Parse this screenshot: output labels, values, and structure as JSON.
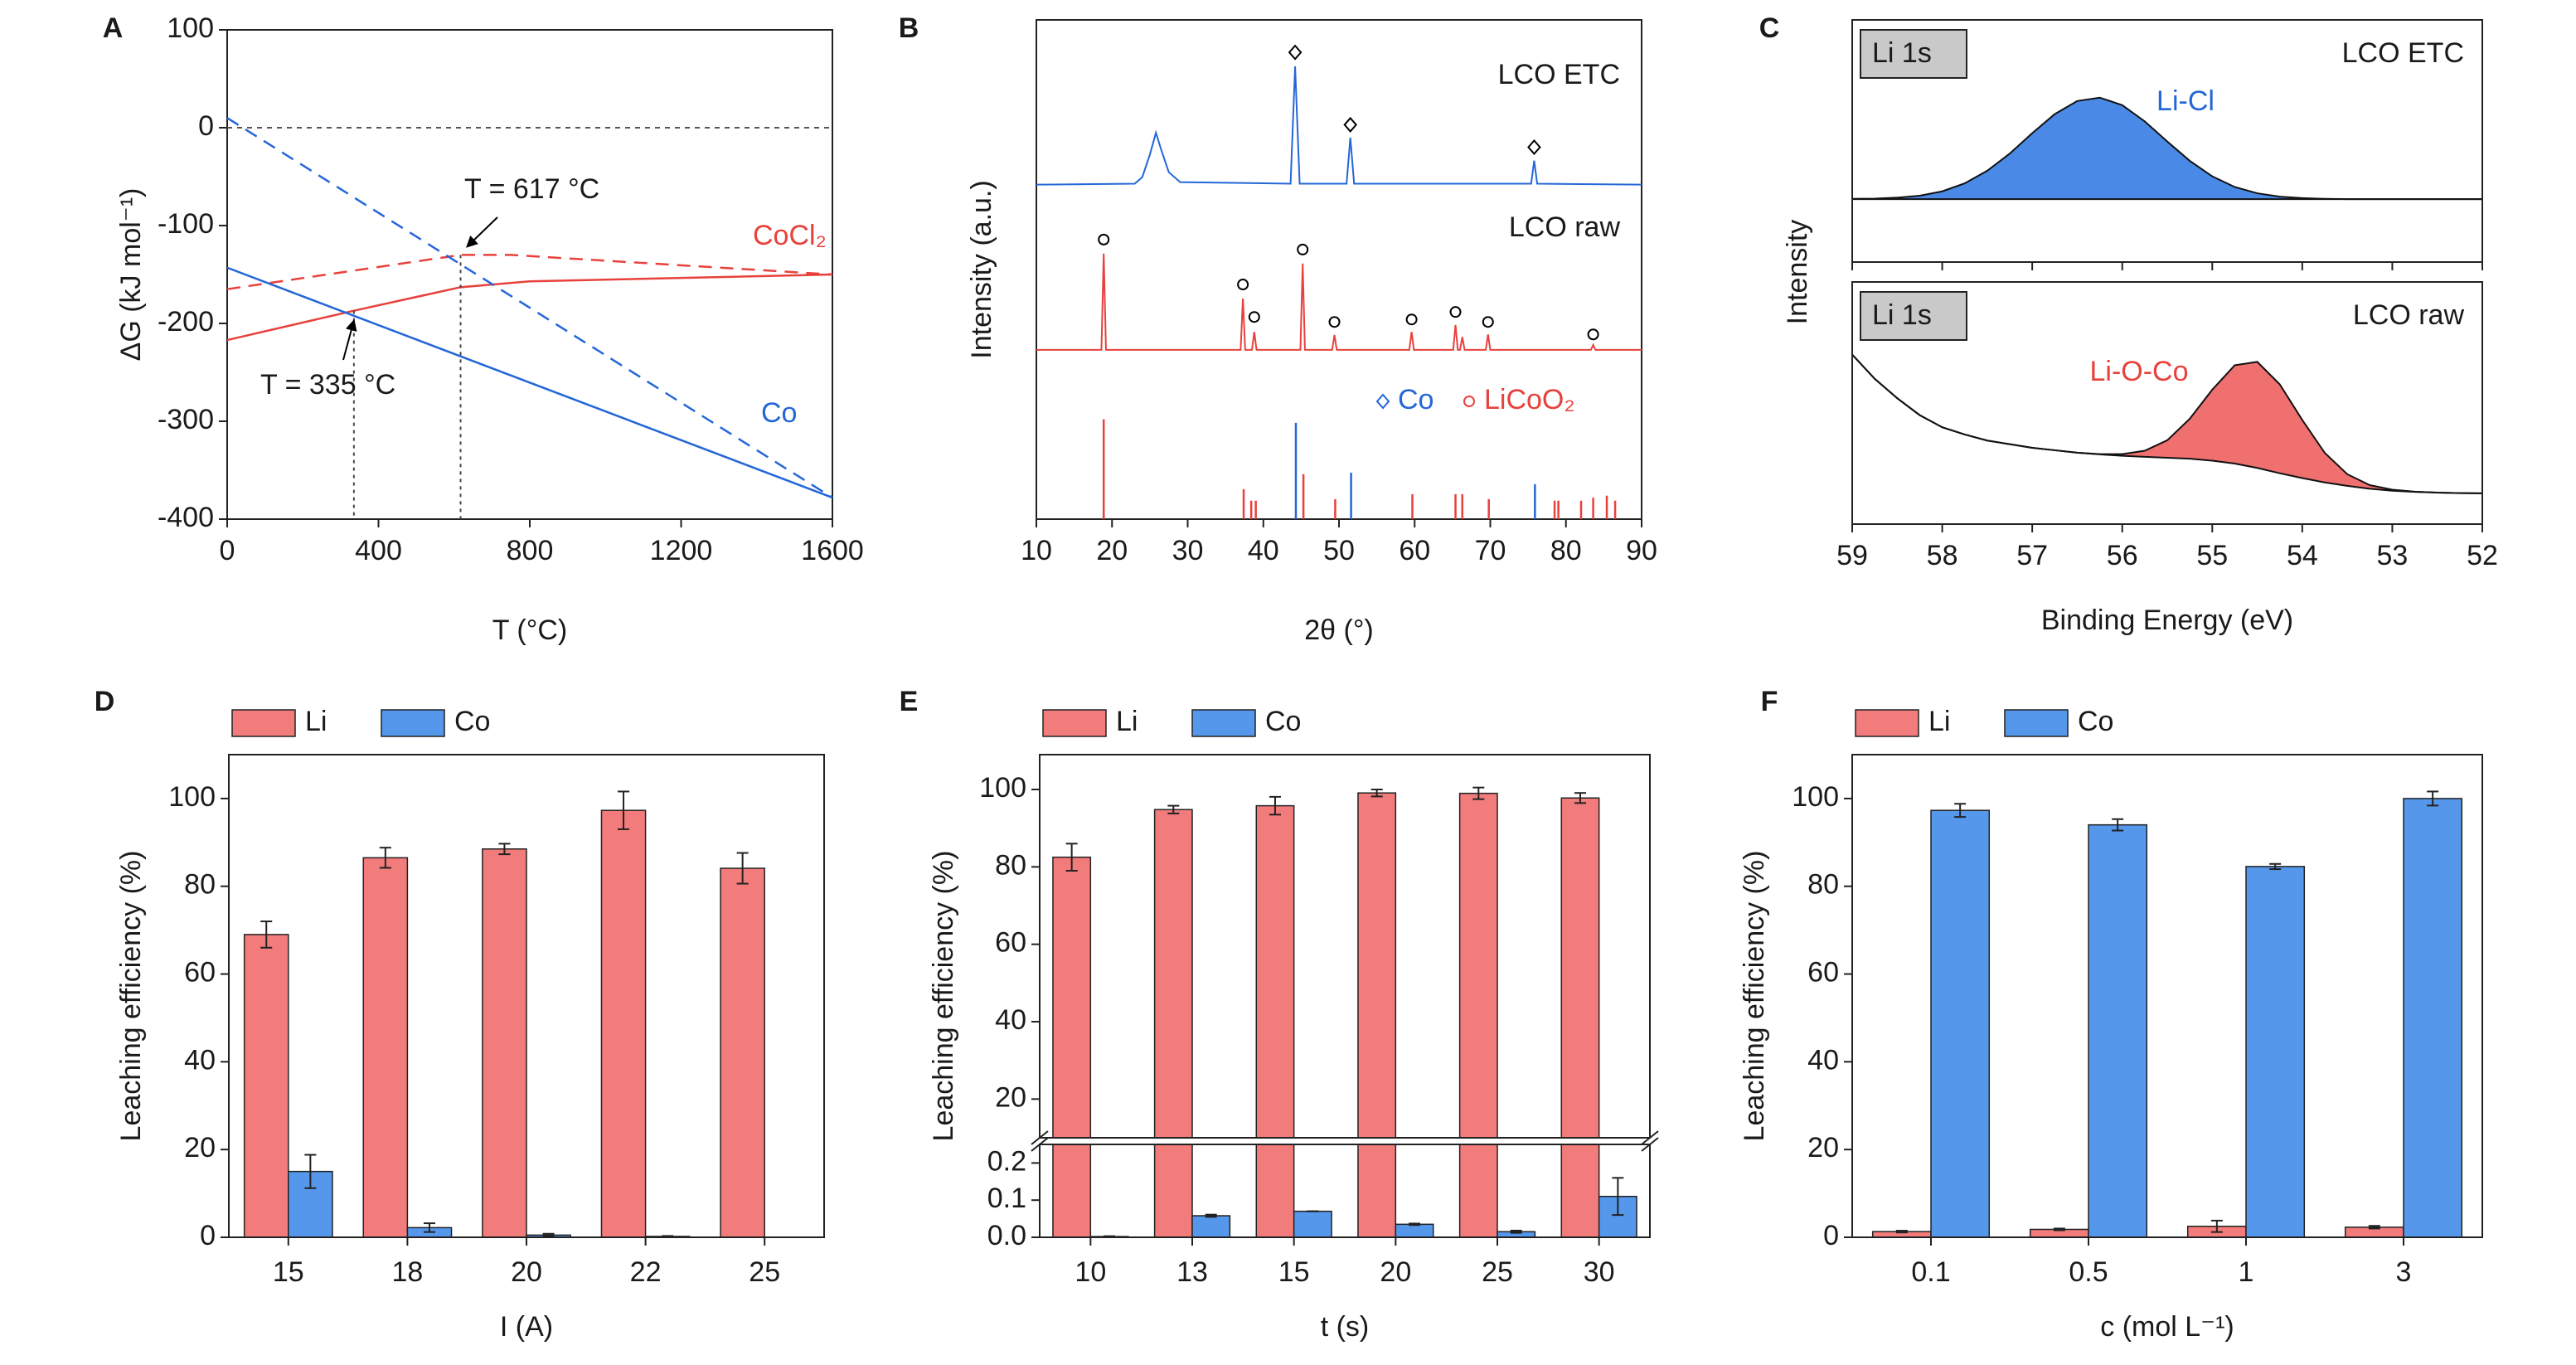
{
  "chart_data": [
    {
      "type": "line",
      "panel": "A",
      "xlabel": "T (°C)",
      "ylabel": "ΔG (kJ mol⁻¹)",
      "xlim": [
        0,
        1600
      ],
      "ylim": [
        -400,
        100
      ],
      "xticks": [
        0,
        400,
        800,
        1200,
        1600
      ],
      "yticks": [
        -400,
        -300,
        -200,
        -100,
        0,
        100
      ],
      "hline": 0,
      "series": [
        {
          "name": "CoCl₂",
          "color": "#e8413c",
          "dash": false,
          "x": [
            0,
            335,
            617,
            800,
            1600
          ],
          "values": [
            -217,
            -187,
            -163,
            -157,
            -150
          ]
        },
        {
          "color": "#e8413c",
          "dash": true,
          "x": [
            0,
            617,
            750,
            1600
          ],
          "values": [
            -165,
            -130,
            -130,
            -150
          ]
        },
        {
          "name": "Co",
          "color": "#2467d8",
          "dash": false,
          "x": [
            0,
            1600
          ],
          "values": [
            -143,
            -378
          ]
        },
        {
          "color": "#2467d8",
          "dash": true,
          "x": [
            0,
            1600
          ],
          "values": [
            10,
            -378
          ]
        }
      ],
      "annotations": [
        {
          "text": "T = 617 °C",
          "x": 617,
          "y": -130
        },
        {
          "text": "T = 335 °C",
          "x": 335,
          "y": -187
        }
      ]
    },
    {
      "type": "xrd",
      "panel": "B",
      "xlabel": "2θ (°)",
      "ylabel": "Intensity (a.u.)",
      "xlim": [
        10,
        90
      ],
      "xticks": [
        10,
        20,
        30,
        40,
        50,
        60,
        70,
        80,
        90
      ],
      "ylim": [
        0,
        10
      ],
      "series": [
        {
          "name": "LCO ETC",
          "color": "#2467d8",
          "x": [
            10,
            23,
            24,
            25,
            25.8,
            26.5,
            27.5,
            29,
            43.6,
            44.2,
            44.8,
            51,
            51.5,
            52,
            75.4,
            75.8,
            76.2,
            90
          ],
          "values": [
            6.7,
            6.72,
            6.85,
            7.3,
            7.74,
            7.4,
            6.95,
            6.75,
            6.72,
            9.07,
            6.72,
            6.72,
            7.64,
            6.72,
            6.72,
            7.18,
            6.72,
            6.7
          ]
        },
        {
          "name": "LCO raw",
          "color": "#e8413c",
          "x": [
            10,
            18.6,
            18.9,
            19.2,
            37,
            37.3,
            37.6,
            38.5,
            38.8,
            39.1,
            44.9,
            45.2,
            45.5,
            49.1,
            49.4,
            49.7,
            59.3,
            59.6,
            59.9,
            65.1,
            65.4,
            65.7,
            66,
            66.3,
            66.6,
            69.4,
            69.7,
            70,
            83.3,
            83.6,
            83.9,
            90
          ],
          "values": [
            3.39,
            3.39,
            5.32,
            3.39,
            3.39,
            4.42,
            3.39,
            3.39,
            3.75,
            3.39,
            3.39,
            5.12,
            3.39,
            3.39,
            3.69,
            3.39,
            3.39,
            3.75,
            3.39,
            3.39,
            3.89,
            3.39,
            3.39,
            3.65,
            3.39,
            3.39,
            3.7,
            3.39,
            3.39,
            3.49,
            3.39,
            3.39
          ]
        }
      ],
      "references": [
        {
          "name": "Co",
          "color": "#2467d8",
          "marker": "diamond",
          "x": [
            44.3,
            51.6,
            75.9
          ],
          "values": [
            1.93,
            0.93,
            0.7
          ],
          "marker_x": [
            44.2,
            51.5,
            75.8
          ],
          "marker_y": [
            9.35,
            7.9,
            7.45
          ]
        },
        {
          "name": "LiCoO₂",
          "color": "#e8413c",
          "marker": "circle",
          "x": [
            18.9,
            37.4,
            38.4,
            39.0,
            45.3,
            49.5,
            59.7,
            65.4,
            66.3,
            69.8,
            78.5,
            79.0,
            82.0,
            83.6,
            85.4,
            86.5
          ],
          "values": [
            2.0,
            0.6,
            0.37,
            0.37,
            0.9,
            0.4,
            0.5,
            0.5,
            0.5,
            0.4,
            0.37,
            0.37,
            0.37,
            0.43,
            0.47,
            0.37
          ],
          "marker_x": [
            18.9,
            37.3,
            38.8,
            45.2,
            49.4,
            59.6,
            65.4,
            69.7,
            83.6
          ],
          "marker_y": [
            5.6,
            4.7,
            4.05,
            5.4,
            3.95,
            4.0,
            4.15,
            3.95,
            3.7
          ]
        }
      ]
    },
    {
      "type": "xps",
      "panel": "C",
      "xlabel": "Binding Energy (eV)",
      "ylabel": "Intensity",
      "xlim": [
        59,
        52
      ],
      "xticks": [
        59,
        58,
        57,
        56,
        55,
        54,
        53,
        52
      ],
      "ylim": [
        0,
        1
      ],
      "x": [
        59,
        58.75,
        58.5,
        58.25,
        58,
        57.75,
        57.5,
        57.25,
        57,
        56.75,
        56.5,
        56.25,
        56,
        55.75,
        55.5,
        55.25,
        55,
        54.75,
        54.5,
        54.25,
        54,
        53.75,
        53.5,
        53.25,
        53,
        52.75,
        52.5,
        52.25,
        52
      ],
      "panels": [
        {
          "tag": "Li 1s",
          "name": "LCO ETC",
          "peak": {
            "label": "Li-Cl",
            "color": "#4a8ae6",
            "values": [
              0.261,
              0.262,
              0.266,
              0.274,
              0.292,
              0.325,
              0.377,
              0.448,
              0.532,
              0.611,
              0.665,
              0.679,
              0.648,
              0.581,
              0.498,
              0.418,
              0.354,
              0.31,
              0.284,
              0.27,
              0.264,
              0.261,
              0.26,
              0.26,
              0.26,
              0.26,
              0.26,
              0.26,
              0.26
            ]
          },
          "background": [
            0.26,
            0.26,
            0.26,
            0.26,
            0.26,
            0.26,
            0.26,
            0.26,
            0.26,
            0.26,
            0.26,
            0.26,
            0.26,
            0.26,
            0.26,
            0.26,
            0.26,
            0.26,
            0.26,
            0.26,
            0.26,
            0.26,
            0.26,
            0.26,
            0.26,
            0.26,
            0.26,
            0.26,
            0.26
          ]
        },
        {
          "tag": "Li 1s",
          "name": "LCO raw",
          "peak": {
            "label": "Li-O-Co",
            "color": "#f07070",
            "values": [
              0.7,
              0.6,
              0.52,
              0.45,
              0.4,
              0.37,
              0.345,
              0.33,
              0.315,
              0.305,
              0.295,
              0.289,
              0.289,
              0.303,
              0.346,
              0.435,
              0.555,
              0.656,
              0.67,
              0.577,
              0.43,
              0.294,
              0.206,
              0.161,
              0.142,
              0.134,
              0.13,
              0.128,
              0.127
            ]
          },
          "background": [
            0.7,
            0.6,
            0.52,
            0.45,
            0.4,
            0.37,
            0.345,
            0.33,
            0.315,
            0.305,
            0.295,
            0.288,
            0.282,
            0.278,
            0.274,
            0.27,
            0.262,
            0.25,
            0.232,
            0.21,
            0.19,
            0.172,
            0.158,
            0.146,
            0.138,
            0.133,
            0.13,
            0.128,
            0.127
          ]
        }
      ]
    },
    {
      "type": "bar",
      "panel": "D",
      "xlabel": "I (A)",
      "ylabel": "Leaching efficiency (%)",
      "categories": [
        "15",
        "18",
        "20",
        "22",
        "25"
      ],
      "ylim": [
        0,
        110
      ],
      "yticks": [
        0,
        20,
        40,
        60,
        80,
        100
      ],
      "series": [
        {
          "name": "Li",
          "color": "#f27b7b",
          "values": [
            69,
            86.5,
            88.5,
            97.3,
            84.1
          ],
          "errors": [
            3,
            2.3,
            1.2,
            4.3,
            3.5
          ]
        },
        {
          "name": "Co",
          "color": "#5597ea",
          "values": [
            15,
            2.2,
            0.5,
            0.2,
            0
          ],
          "errors": [
            3.8,
            1,
            0.3,
            0.1,
            0
          ]
        }
      ]
    },
    {
      "type": "bar",
      "panel": "E",
      "xlabel": "t (s)",
      "ylabel": "Leaching efficiency (%)",
      "categories": [
        "10",
        "13",
        "15",
        "20",
        "25",
        "30"
      ],
      "segments": [
        {
          "ylim": [
            0,
            0.25
          ],
          "yticks": [
            {
              "value": 0,
              "label": "0.0"
            },
            0.1,
            0.2
          ]
        },
        {
          "ylim": [
            10,
            109
          ],
          "yticks": [
            20,
            40,
            60,
            80,
            100
          ]
        }
      ],
      "series": [
        {
          "name": "Li",
          "color": "#f27b7b",
          "values": [
            82.5,
            94.8,
            95.8,
            99.1,
            99,
            97.8
          ],
          "errors": [
            3.5,
            1,
            2.3,
            0.9,
            1.5,
            1.3
          ]
        },
        {
          "name": "Co",
          "color": "#5597ea",
          "values": [
            0.002,
            0.058,
            0.07,
            0.035,
            0.015,
            0.11
          ],
          "errors": [
            0.001,
            0.003,
            0,
            0.002,
            0.003,
            0.05
          ]
        }
      ]
    },
    {
      "type": "bar",
      "panel": "F",
      "xlabel": "c (mol L⁻¹)",
      "ylabel": "Leaching efficiency (%)",
      "categories": [
        "0.1",
        "0.5",
        "1",
        "3"
      ],
      "ylim": [
        0,
        110
      ],
      "yticks": [
        0,
        20,
        40,
        60,
        80,
        100
      ],
      "series": [
        {
          "name": "Li",
          "color": "#f27b7b",
          "values": [
            1.3,
            1.8,
            2.5,
            2.3
          ],
          "errors": [
            0.2,
            0.2,
            1.3,
            0.3
          ]
        },
        {
          "name": "Co",
          "color": "#5597ea",
          "values": [
            97.3,
            94,
            84.5,
            100
          ],
          "errors": [
            1.5,
            1.3,
            0.6,
            1.6
          ]
        }
      ]
    }
  ]
}
